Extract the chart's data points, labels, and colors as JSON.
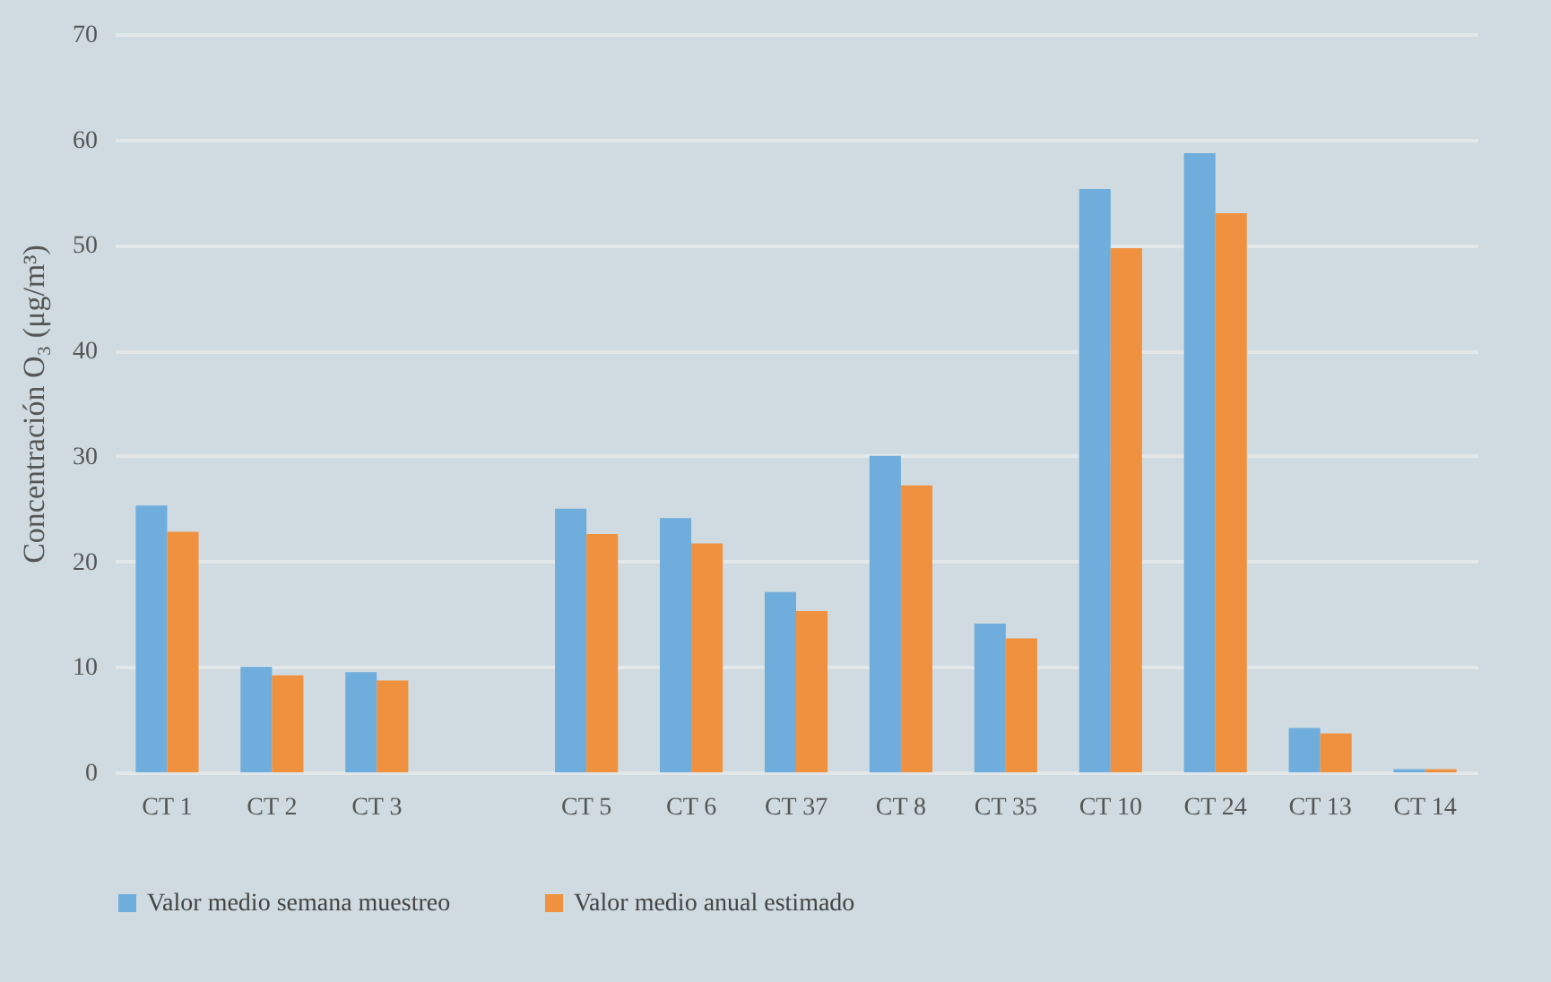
{
  "chart_data": {
    "type": "bar",
    "ylabel": "Concentración O₃ (μg/m³)",
    "categories": [
      "CT 1",
      "CT 2",
      "CT 3",
      null,
      "CT 5",
      "CT 6",
      "CT 37",
      "CT 8",
      "CT 35",
      "CT 10",
      "CT 24",
      "CT 13",
      "CT 14"
    ],
    "series": [
      {
        "name": "Valor medio semana muestreo",
        "color": "#6eaddc",
        "values": [
          25.3,
          10.0,
          9.5,
          null,
          25.0,
          24.1,
          17.1,
          30.0,
          14.1,
          55.3,
          58.7,
          4.2,
          0.3
        ]
      },
      {
        "name": "Valor medio anual estimado",
        "color": "#f0913f",
        "values": [
          22.8,
          9.2,
          8.7,
          null,
          22.6,
          21.7,
          15.3,
          27.2,
          12.7,
          49.7,
          53.0,
          3.7,
          0.3
        ]
      }
    ],
    "ylim": [
      0,
      70
    ],
    "yticks": [
      0,
      10,
      20,
      30,
      40,
      50,
      60,
      70
    ],
    "grid": "y",
    "legend": "bottom"
  }
}
